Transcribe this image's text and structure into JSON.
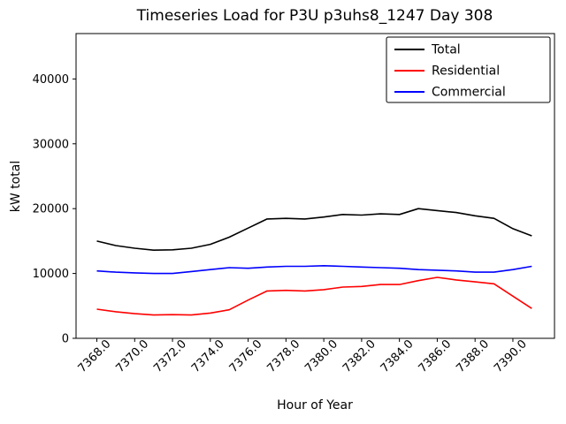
{
  "figure": {
    "title": "Timeseries Load for P3U p3uhs8_1247  Day 308"
  },
  "chart_data": {
    "type": "line",
    "title": "Timeseries Load for P3U p3uhs8_1247  Day 308",
    "xlabel": "Hour of Year",
    "ylabel": "kW total",
    "grid": false,
    "legend_position": "upper right",
    "xlim": [
      7366.9,
      7392.2
    ],
    "ylim": [
      0,
      47000
    ],
    "xticks": [
      7368,
      7370,
      7372,
      7374,
      7376,
      7378,
      7380,
      7382,
      7384,
      7386,
      7388,
      7390
    ],
    "xtick_labels": [
      "7368.0",
      "7370.0",
      "7372.0",
      "7374.0",
      "7376.0",
      "7378.0",
      "7380.0",
      "7382.0",
      "7384.0",
      "7386.0",
      "7388.0",
      "7390.0"
    ],
    "yticks": [
      0,
      10000,
      20000,
      30000,
      40000
    ],
    "ytick_labels": [
      "0",
      "10000",
      "20000",
      "30000",
      "40000"
    ],
    "x": [
      7368,
      7369,
      7370,
      7371,
      7372,
      7373,
      7374,
      7375,
      7376,
      7377,
      7378,
      7379,
      7380,
      7381,
      7382,
      7383,
      7384,
      7385,
      7386,
      7387,
      7388,
      7389,
      7390,
      7391
    ],
    "series": [
      {
        "name": "Total",
        "color": "#000000",
        "values": [
          15000,
          14300,
          13900,
          13600,
          13650,
          13900,
          14500,
          15600,
          17000,
          18400,
          18500,
          18400,
          18700,
          19100,
          19000,
          19200,
          19100,
          20000,
          19700,
          19400,
          18900,
          18500,
          16900,
          15800
        ]
      },
      {
        "name": "Residential",
        "color": "#ff0000",
        "values": [
          4500,
          4100,
          3800,
          3600,
          3650,
          3600,
          3900,
          4400,
          5900,
          7300,
          7400,
          7300,
          7500,
          7900,
          8000,
          8300,
          8300,
          8900,
          9400,
          9000,
          8700,
          8400,
          6500,
          4600
        ]
      },
      {
        "name": "Commercial",
        "color": "#0000ff",
        "values": [
          10400,
          10200,
          10100,
          10000,
          10000,
          10300,
          10600,
          10900,
          10800,
          11000,
          11100,
          11100,
          11200,
          11100,
          11000,
          10900,
          10800,
          10600,
          10500,
          10400,
          10200,
          10200,
          10600,
          11100
        ]
      }
    ]
  }
}
